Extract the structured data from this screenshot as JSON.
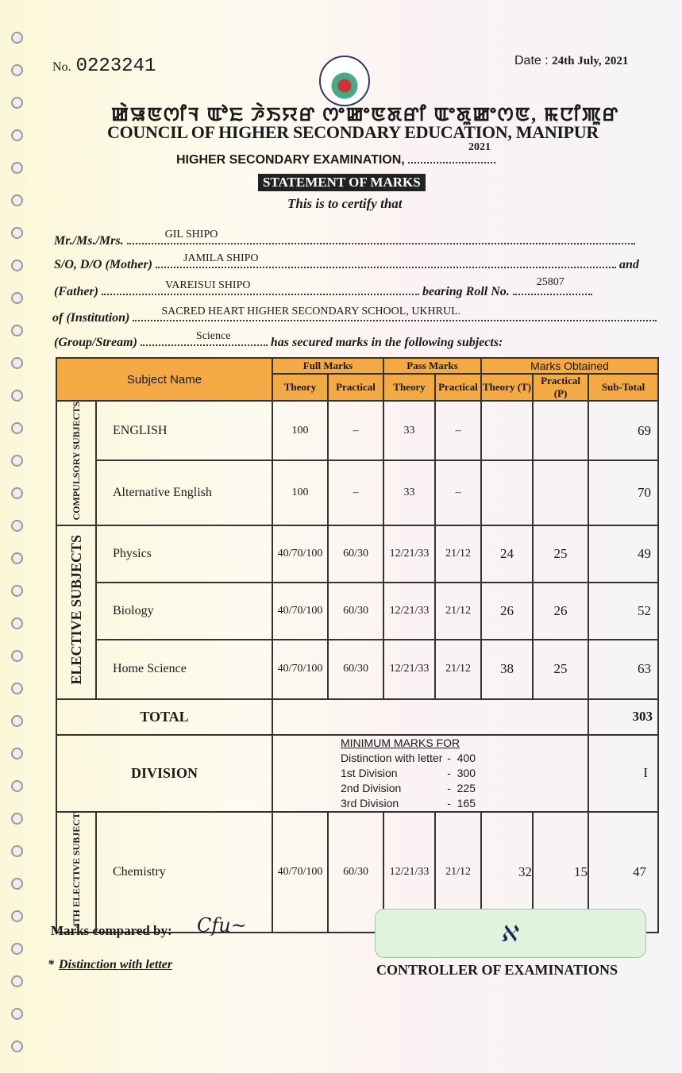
{
  "header": {
    "no_label": "No.",
    "number": "0223241",
    "date_label": "Date :",
    "date": "24th July, 2021",
    "meitei_title": "ꯀꯥꯎꯟꯁꯤꯜ ꯑꯣꯐ ꯍꯥꯏꯌꯔ ꯁꯦꯀꯦꯟꯗꯔꯤ ꯑꯦꯗꯨꯀꯦꯁꯟ, ꯃꯅꯤꯄꯨꯔ",
    "council": "COUNCIL OF HIGHER SECONDARY EDUCATION, MANIPUR",
    "exam": "HIGHER SECONDARY EXAMINATION,",
    "exam_year": "2021",
    "statement": "STATEMENT OF MARKS",
    "certify": "This is to certify that",
    "watermark": "COUNCIL OF HIGHER SECONDARY EDUCATION MANIPUR"
  },
  "candidate": {
    "name_label": "Mr./Ms./Mrs.",
    "name": "GIL SHIPO",
    "mother_label": "S/O, D/O (Mother)",
    "mother": "JAMILA SHIPO",
    "and": "and",
    "father_label": "(Father)",
    "father": "VAREISUI SHIPO",
    "roll_label": "bearing Roll No.",
    "roll": "25807",
    "institution_label": "of (Institution)",
    "institution": "SACRED HEART HIGHER SECONDARY SCHOOL, UKHRUL.",
    "stream_label": "(Group/Stream)",
    "stream": "Science",
    "secured": "has secured marks in the following subjects:"
  },
  "table": {
    "headers": {
      "subject": "Subject Name",
      "full": "Full Marks",
      "pass": "Pass Marks",
      "obtained": "Marks Obtained",
      "theory": "Theory",
      "practical": "Practical",
      "obt_theory": "Theory (T)",
      "obt_practical": "Practical (P)",
      "subtotal": "Sub-Total"
    },
    "compulsory_label": "COMPULSORY SUBJECTS",
    "elective_label": "ELECTIVE SUBJECTS",
    "fourth_label": "4TH ELECTIVE SUBJECT",
    "rows": [
      {
        "subject": "ENGLISH",
        "full_t": "100",
        "full_p": "–",
        "pass_t": "33",
        "pass_p": "–",
        "obt_t": "",
        "obt_p": "",
        "sub": "69"
      },
      {
        "subject": "Alternative English",
        "full_t": "100",
        "full_p": "–",
        "pass_t": "33",
        "pass_p": "–",
        "obt_t": "",
        "obt_p": "",
        "sub": "70"
      },
      {
        "subject": "Physics",
        "full_t": "40/70/100",
        "full_p": "60/30",
        "pass_t": "12/21/33",
        "pass_p": "21/12",
        "obt_t": "24",
        "obt_p": "25",
        "sub": "49"
      },
      {
        "subject": "Biology",
        "full_t": "40/70/100",
        "full_p": "60/30",
        "pass_t": "12/21/33",
        "pass_p": "21/12",
        "obt_t": "26",
        "obt_p": "26",
        "sub": "52"
      },
      {
        "subject": "Home Science",
        "full_t": "40/70/100",
        "full_p": "60/30",
        "pass_t": "12/21/33",
        "pass_p": "21/12",
        "obt_t": "38",
        "obt_p": "25",
        "sub": "63"
      }
    ],
    "total_label": "TOTAL",
    "total": "303",
    "division_label": "DIVISION",
    "division": "I",
    "minimum": {
      "title": "MINIMUM MARKS FOR",
      "items": [
        {
          "label": "Distinction with letter",
          "value": "400"
        },
        {
          "label": "1st Division",
          "value": "300"
        },
        {
          "label": "2nd Division",
          "value": "225"
        },
        {
          "label": "3rd Division",
          "value": "165"
        }
      ]
    },
    "fourth": {
      "subject": "Chemistry",
      "full_t": "40/70/100",
      "full_p": "60/30",
      "pass_t": "12/21/33",
      "pass_p": "21/12",
      "obt_t": "32",
      "obt_p": "15",
      "sub": "47"
    }
  },
  "footer": {
    "compared": "Marks compared by:",
    "distinction": "Distinction with letter",
    "star": "*",
    "controller": "CONTROLLER OF EXAMINATIONS"
  }
}
